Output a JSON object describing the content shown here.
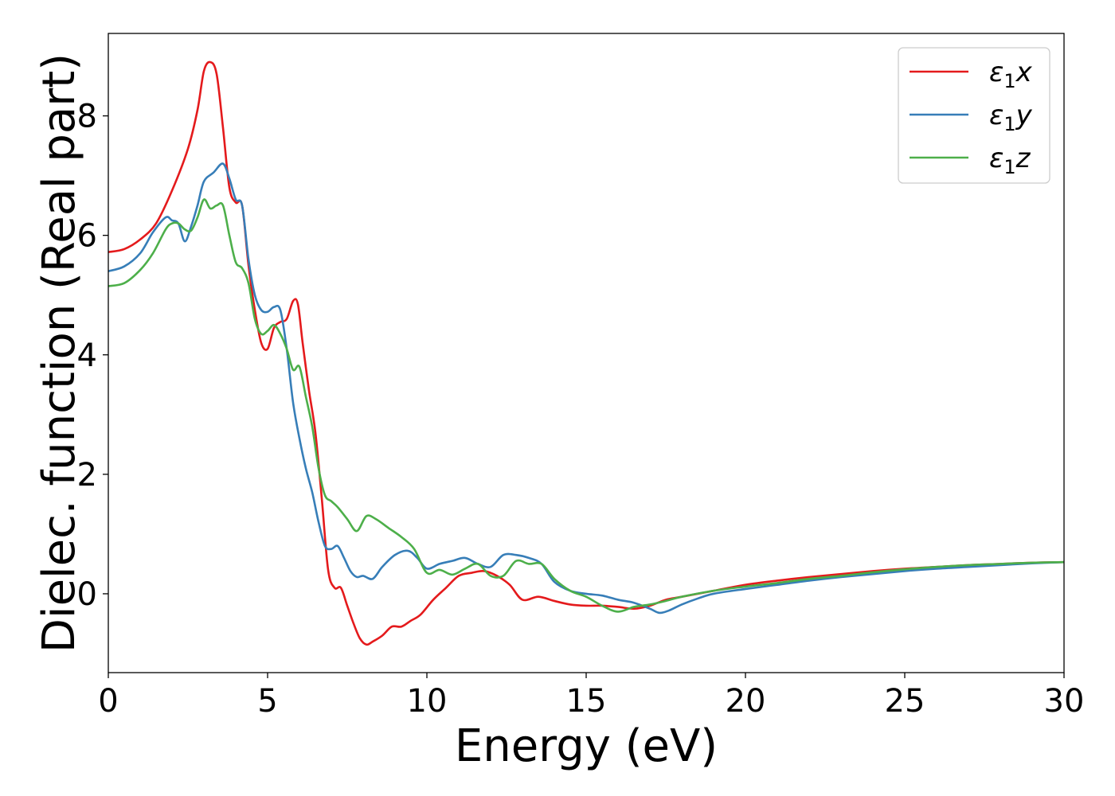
{
  "chart_data": {
    "type": "line",
    "title": "",
    "xlabel": "Energy (eV)",
    "ylabel": "Dielec. function (Real part)",
    "xlim": [
      0,
      30
    ],
    "ylim": [
      -1.32,
      9.38
    ],
    "xticks": [
      0,
      5,
      10,
      15,
      20,
      25,
      30
    ],
    "yticks": [
      0,
      2,
      4,
      6,
      8
    ],
    "grid": false,
    "legend_position": "top-right",
    "series": [
      {
        "name": "ε1x",
        "legend_base": "ε",
        "legend_sub": "1",
        "legend_suffix": "x",
        "color": "#e41a1c",
        "x": [
          0,
          0.5,
          1.0,
          1.5,
          2.0,
          2.5,
          2.8,
          3.0,
          3.2,
          3.4,
          3.6,
          3.8,
          4.0,
          4.2,
          4.4,
          4.6,
          4.8,
          5.0,
          5.2,
          5.4,
          5.6,
          5.8,
          5.95,
          6.1,
          6.3,
          6.5,
          6.7,
          6.9,
          7.1,
          7.3,
          7.5,
          7.7,
          7.9,
          8.1,
          8.3,
          8.6,
          8.9,
          9.2,
          9.5,
          9.8,
          10.2,
          10.6,
          11.0,
          11.4,
          11.8,
          12.2,
          12.6,
          13.0,
          13.5,
          14.0,
          14.5,
          15.0,
          15.5,
          16.0,
          16.5,
          17.0,
          17.5,
          18.0,
          19.0,
          20.0,
          21.0,
          22.0,
          23.0,
          24.0,
          25.0,
          26.0,
          27.0,
          28.0,
          29.0,
          30.0
        ],
        "values": [
          5.72,
          5.77,
          5.93,
          6.2,
          6.75,
          7.45,
          8.1,
          8.75,
          8.9,
          8.7,
          7.8,
          6.8,
          6.55,
          6.5,
          5.5,
          4.75,
          4.2,
          4.1,
          4.45,
          4.55,
          4.6,
          4.9,
          4.85,
          4.2,
          3.4,
          2.7,
          1.6,
          0.4,
          0.1,
          0.1,
          -0.2,
          -0.5,
          -0.75,
          -0.85,
          -0.8,
          -0.7,
          -0.55,
          -0.55,
          -0.45,
          -0.35,
          -0.1,
          0.1,
          0.3,
          0.35,
          0.38,
          0.3,
          0.15,
          -0.1,
          -0.05,
          -0.12,
          -0.18,
          -0.2,
          -0.2,
          -0.22,
          -0.25,
          -0.2,
          -0.1,
          -0.05,
          0.05,
          0.15,
          0.22,
          0.28,
          0.33,
          0.38,
          0.42,
          0.45,
          0.48,
          0.5,
          0.52,
          0.53
        ]
      },
      {
        "name": "ε1y",
        "legend_base": "ε",
        "legend_sub": "1",
        "legend_suffix": "y",
        "color": "#377eb8",
        "x": [
          0,
          0.5,
          1.0,
          1.4,
          1.8,
          2.0,
          2.2,
          2.4,
          2.6,
          2.8,
          3.0,
          3.3,
          3.6,
          3.8,
          4.0,
          4.2,
          4.4,
          4.6,
          4.8,
          5.0,
          5.2,
          5.4,
          5.6,
          5.8,
          6.0,
          6.2,
          6.4,
          6.6,
          6.8,
          7.0,
          7.2,
          7.4,
          7.6,
          7.8,
          8.0,
          8.3,
          8.6,
          9.0,
          9.4,
          9.7,
          10.0,
          10.4,
          10.8,
          11.2,
          11.6,
          12.0,
          12.4,
          12.8,
          13.2,
          13.6,
          14.0,
          14.5,
          15.0,
          15.5,
          16.0,
          16.5,
          17.0,
          17.3,
          17.6,
          18.0,
          18.5,
          19.0,
          20.0,
          21.0,
          22.0,
          23.0,
          24.0,
          25.0,
          26.0,
          27.0,
          28.0,
          29.0,
          30.0
        ],
        "values": [
          5.4,
          5.48,
          5.7,
          6.05,
          6.3,
          6.25,
          6.2,
          5.9,
          6.15,
          6.5,
          6.9,
          7.05,
          7.2,
          6.95,
          6.6,
          6.5,
          5.6,
          5.0,
          4.75,
          4.72,
          4.8,
          4.75,
          4.1,
          3.2,
          2.6,
          2.1,
          1.7,
          1.2,
          0.8,
          0.75,
          0.8,
          0.6,
          0.38,
          0.28,
          0.3,
          0.25,
          0.45,
          0.65,
          0.72,
          0.6,
          0.42,
          0.5,
          0.55,
          0.6,
          0.5,
          0.45,
          0.65,
          0.65,
          0.6,
          0.5,
          0.2,
          0.05,
          0.0,
          -0.03,
          -0.1,
          -0.15,
          -0.25,
          -0.32,
          -0.28,
          -0.18,
          -0.08,
          0.0,
          0.08,
          0.15,
          0.22,
          0.28,
          0.33,
          0.38,
          0.42,
          0.45,
          0.48,
          0.51,
          0.53
        ]
      },
      {
        "name": "ε1z",
        "legend_base": "ε",
        "legend_sub": "1",
        "legend_suffix": "z",
        "color": "#4daf4a",
        "x": [
          0,
          0.5,
          1.0,
          1.4,
          1.8,
          2.0,
          2.2,
          2.4,
          2.6,
          2.8,
          3.0,
          3.2,
          3.4,
          3.6,
          3.8,
          4.0,
          4.2,
          4.4,
          4.6,
          4.8,
          5.0,
          5.2,
          5.4,
          5.6,
          5.8,
          6.0,
          6.2,
          6.4,
          6.6,
          6.8,
          7.0,
          7.2,
          7.5,
          7.8,
          8.1,
          8.4,
          8.8,
          9.2,
          9.6,
          10.0,
          10.4,
          10.8,
          11.2,
          11.6,
          12.0,
          12.4,
          12.8,
          13.2,
          13.6,
          14.0,
          14.5,
          15.0,
          15.5,
          16.0,
          16.5,
          17.0,
          17.5,
          18.0,
          19.0,
          20.0,
          21.0,
          22.0,
          23.0,
          24.0,
          25.0,
          26.0,
          27.0,
          28.0,
          29.0,
          30.0
        ],
        "values": [
          5.15,
          5.2,
          5.42,
          5.7,
          6.1,
          6.2,
          6.2,
          6.1,
          6.08,
          6.3,
          6.6,
          6.45,
          6.5,
          6.5,
          6.0,
          5.55,
          5.45,
          5.2,
          4.6,
          4.35,
          4.4,
          4.5,
          4.35,
          4.1,
          3.75,
          3.8,
          3.3,
          2.8,
          2.1,
          1.65,
          1.55,
          1.45,
          1.25,
          1.05,
          1.3,
          1.25,
          1.1,
          0.95,
          0.75,
          0.35,
          0.4,
          0.32,
          0.42,
          0.5,
          0.3,
          0.3,
          0.55,
          0.5,
          0.5,
          0.25,
          0.05,
          -0.05,
          -0.2,
          -0.3,
          -0.22,
          -0.18,
          -0.12,
          -0.05,
          0.05,
          0.12,
          0.18,
          0.25,
          0.3,
          0.36,
          0.41,
          0.45,
          0.48,
          0.5,
          0.52,
          0.53
        ]
      }
    ]
  }
}
